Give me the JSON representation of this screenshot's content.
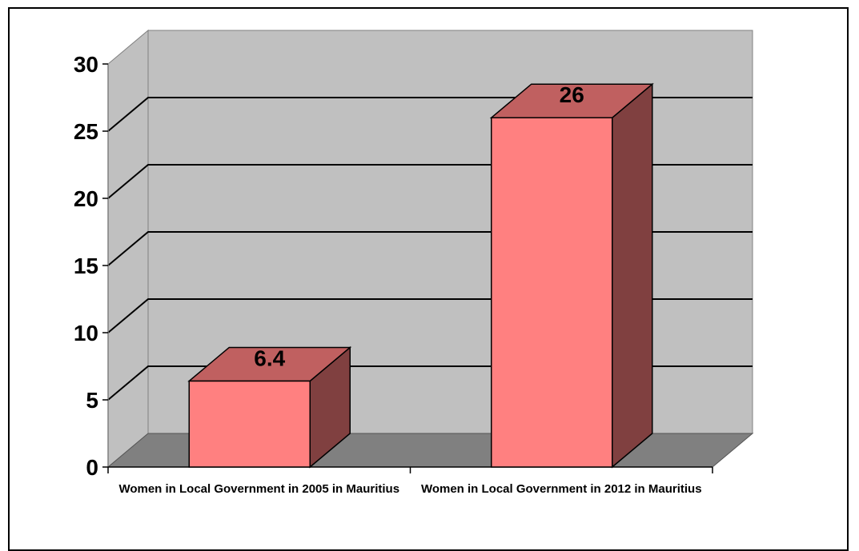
{
  "chart_data": {
    "type": "bar",
    "style": "3d-column",
    "categories": [
      "Women in Local Government in 2005 in Mauritius",
      "Women in Local Government in 2012 in Mauritius"
    ],
    "values": [
      6.4,
      26
    ],
    "data_labels": [
      "6.4",
      "26"
    ],
    "ylim": [
      0,
      30
    ],
    "yticks": [
      0,
      5,
      10,
      15,
      20,
      25,
      30
    ],
    "grid": true,
    "legend": "none",
    "colors": {
      "bar_front": "#ff8080",
      "bar_top": "#c06060",
      "bar_side": "#804040",
      "wall": "#c0c0c0",
      "floor": "#808080",
      "gridline": "#000000"
    }
  }
}
